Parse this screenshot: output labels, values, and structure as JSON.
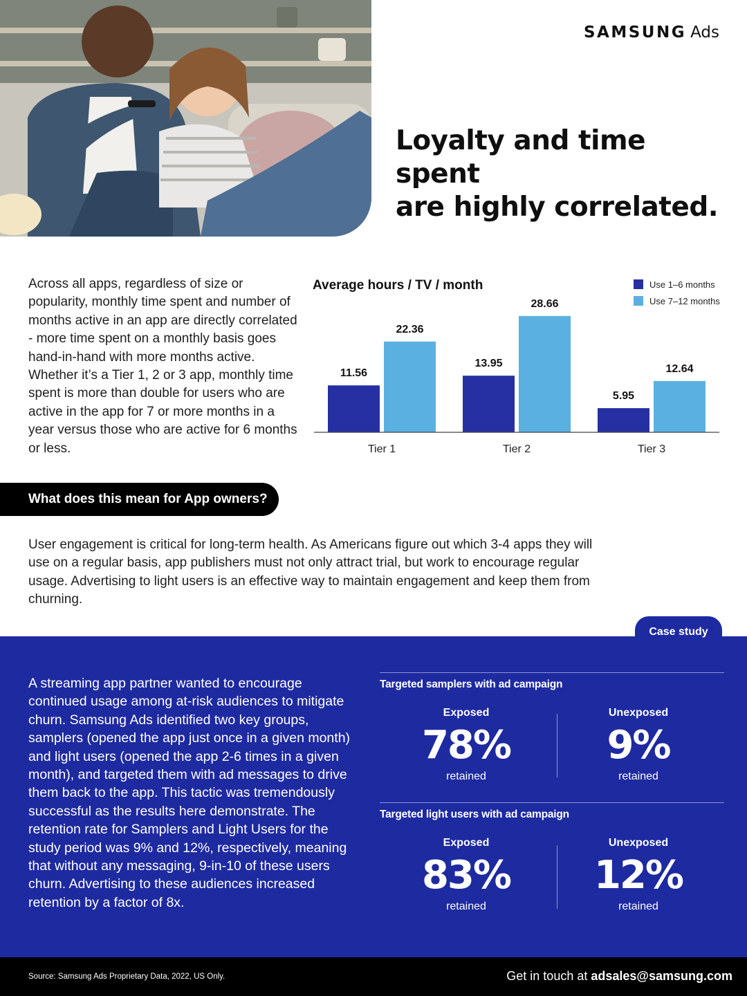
{
  "brand": {
    "name": "SAMSUNG",
    "product": "Ads"
  },
  "headline": {
    "line1": "Loyalty and time spent",
    "line2": "are highly correlated."
  },
  "hero": {
    "image": "couple-watching-tv-photo"
  },
  "intro": {
    "text": "Across all apps, regardless of size or popularity, monthly time spent and number of months active in an app are directly correlated - more time spent on a monthly basis goes hand-in-hand with more months active.  Whether it’s a Tier 1, 2 or 3 app, monthly time spent is more than double for users who are active in the app for 7 or more months in a year versus those who are active for 6 months or less."
  },
  "chart_data": {
    "type": "bar",
    "title": "Average hours / TV / month",
    "categories": [
      "Tier 1",
      "Tier 2",
      "Tier 3"
    ],
    "series": [
      {
        "name": "Use 1–6 months",
        "color": "#2630a3",
        "values": [
          11.56,
          13.95,
          5.95
        ]
      },
      {
        "name": "Use 7–12 months",
        "color": "#5ab0e0",
        "values": [
          22.36,
          28.66,
          12.64
        ]
      }
    ],
    "ylim": [
      0,
      30
    ],
    "grid": false,
    "legend": "top-right",
    "xlabel": "",
    "ylabel": ""
  },
  "app_owners": {
    "heading": "What does this mean for App owners?",
    "text": "User engagement is critical for long-term health. As Americans figure out which 3-4 apps they will use on a regular basis, app publishers must not only attract trial, but work to encourage regular usage. Advertising to light users is an effective way to maintain engagement and keep them from churning."
  },
  "case_study": {
    "tab": "Case study",
    "text": "A streaming app partner wanted to encourage continued usage among at-risk audiences to mitigate churn. Samsung Ads identified two key groups, samplers (opened the app just once in a given month) and light users (opened the app 2-6 times in a given month), and targeted them  with ad messages to drive them back to the app. This tactic was tremendously successful as the results here demonstrate. The retention rate for Samplers and Light Users for the study period was 9% and 12%, respectively, meaning that  without any messaging, 9-in-10 of these users churn. Advertising to these audiences increased retention by a factor of 8x.",
    "samplers": {
      "heading": "Targeted samplers with ad campaign",
      "exposed_label": "Exposed",
      "exposed_value": "78%",
      "exposed_sub": "retained",
      "unexposed_label": "Unexposed",
      "unexposed_value": "9%",
      "unexposed_sub": "retained"
    },
    "light_users": {
      "heading": "Targeted light users with ad campaign",
      "exposed_label": "Exposed",
      "exposed_value": "83%",
      "exposed_sub": "retained",
      "unexposed_label": "Unexposed",
      "unexposed_value": "12%",
      "unexposed_sub": "retained"
    }
  },
  "footer": {
    "source": "Source: Samsung Ads Proprietary Data, 2022, US Only.",
    "contact_prefix": "Get in touch at ",
    "contact_email": "adsales@samsung.com"
  }
}
